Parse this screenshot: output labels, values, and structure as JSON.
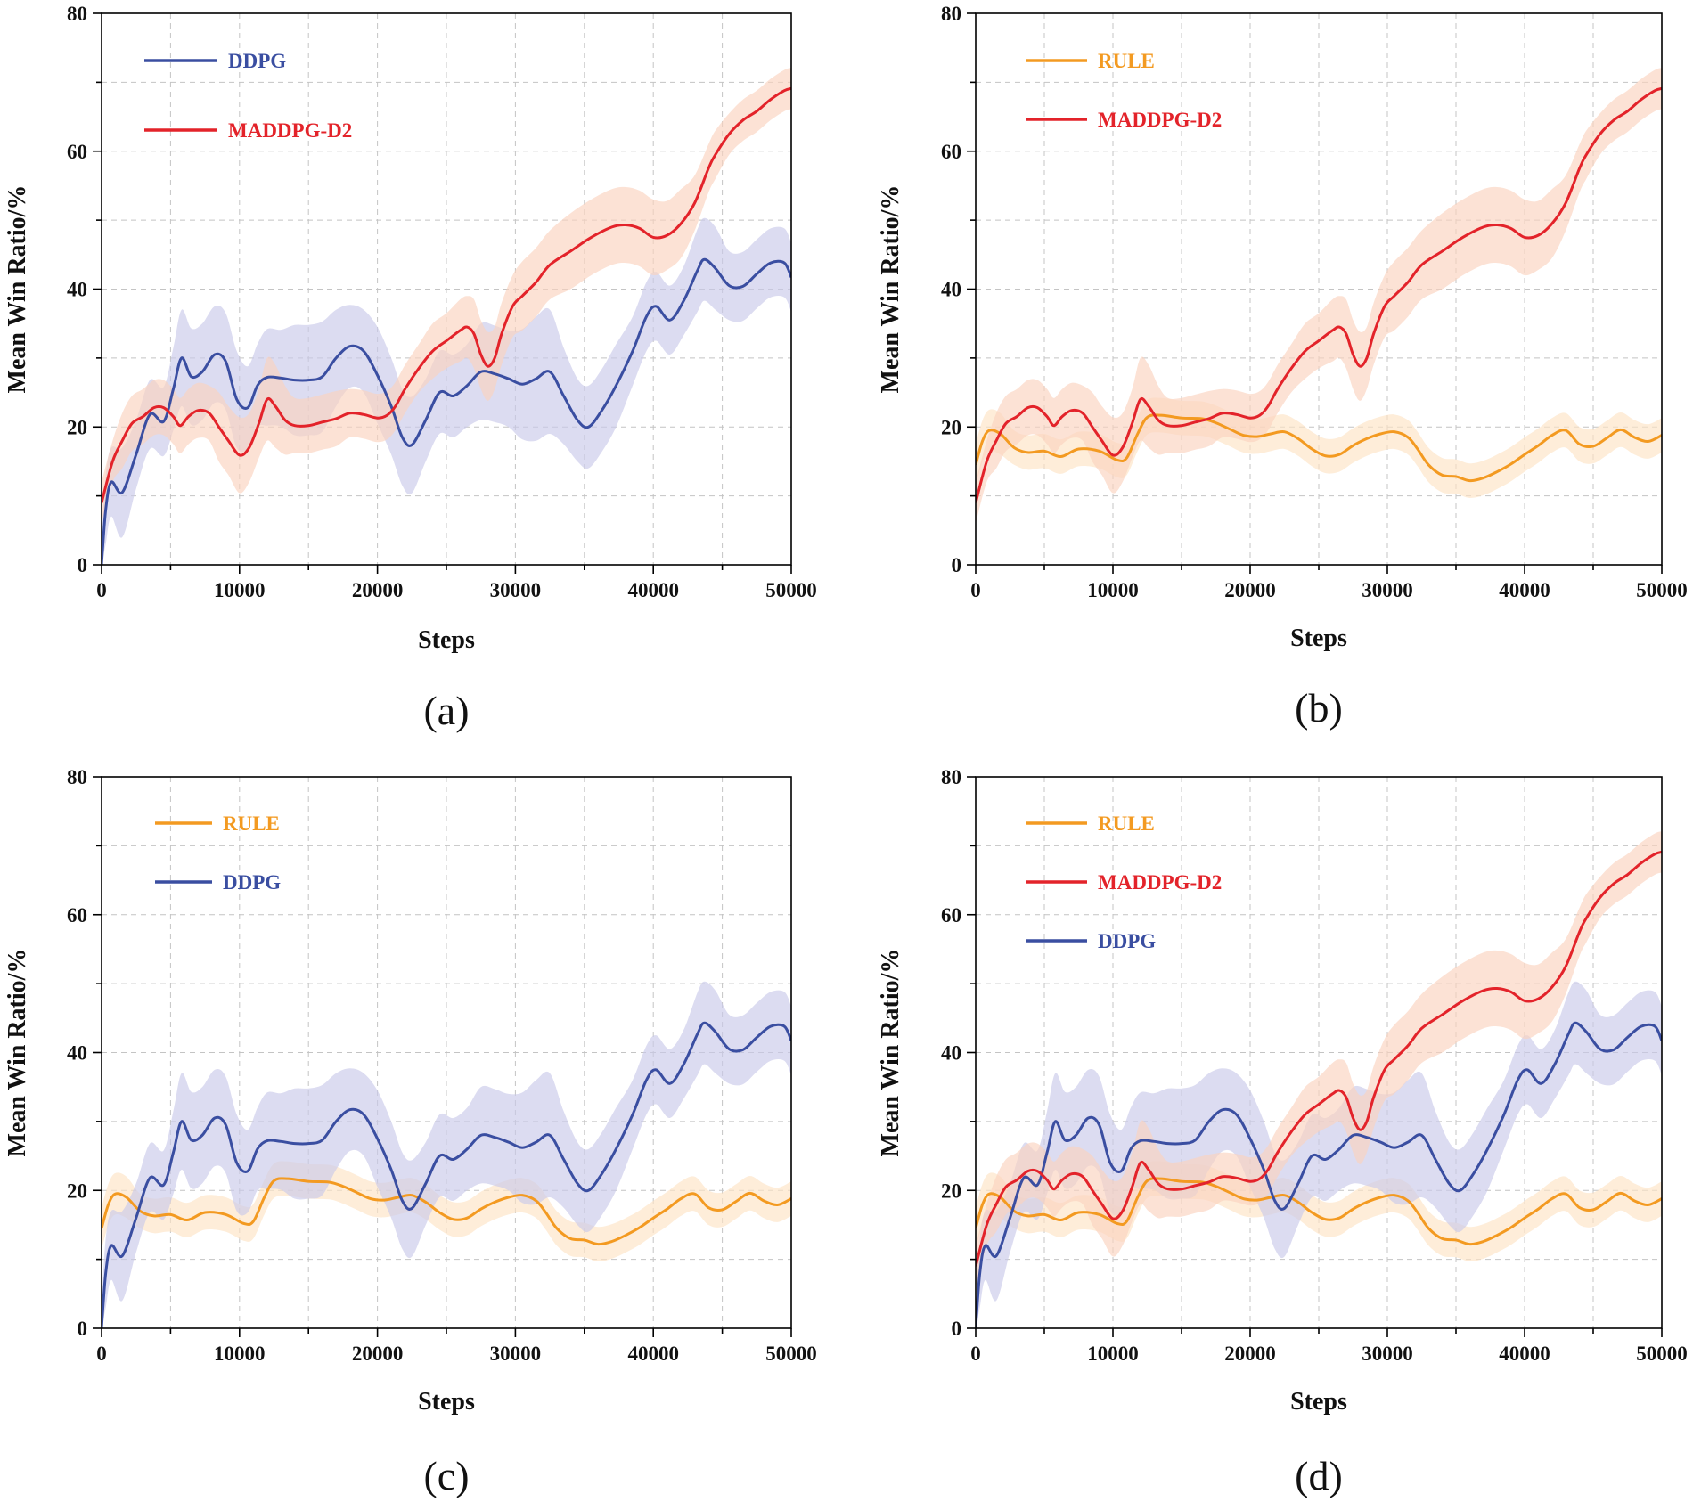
{
  "colors": {
    "DDPG": "#3a4ea1",
    "MADDPG-D2": "#e3232a",
    "RULE": "#f39a21"
  },
  "band_colors": {
    "DDPG": "#c9c9ea",
    "MADDPG-D2": "#fbd3be",
    "RULE": "#fde3c4"
  },
  "chart_data": [
    {
      "type": "line",
      "panel": "(a)",
      "xlabel": "Steps",
      "ylabel": "Mean Win Ratio/%",
      "xlim": [
        0,
        50000
      ],
      "ylim": [
        0,
        80
      ],
      "xticks": [
        0,
        10000,
        20000,
        30000,
        40000,
        50000
      ],
      "yticks": [
        0,
        20,
        40,
        60,
        80
      ],
      "grid": true,
      "legend": [
        "DDPG",
        "MADDPG-D2"
      ],
      "legend_position": "top-left",
      "series": [
        "DDPG",
        "MADDPG-D2"
      ]
    },
    {
      "type": "line",
      "panel": "(b)",
      "xlabel": "Steps",
      "ylabel": "Mean Win Ratio/%",
      "xlim": [
        0,
        50000
      ],
      "ylim": [
        0,
        80
      ],
      "xticks": [
        0,
        10000,
        20000,
        30000,
        40000,
        50000
      ],
      "yticks": [
        0,
        20,
        40,
        60,
        80
      ],
      "grid": true,
      "legend": [
        "RULE",
        "MADDPG-D2"
      ],
      "legend_position": "top-left",
      "series": [
        "RULE",
        "MADDPG-D2"
      ]
    },
    {
      "type": "line",
      "panel": "(c)",
      "xlabel": "Steps",
      "ylabel": "Mean Win Ratio/%",
      "xlim": [
        0,
        50000
      ],
      "ylim": [
        0,
        80
      ],
      "xticks": [
        0,
        10000,
        20000,
        30000,
        40000,
        50000
      ],
      "yticks": [
        0,
        20,
        40,
        60,
        80
      ],
      "grid": true,
      "legend": [
        "RULE",
        "DDPG"
      ],
      "legend_position": "top-left",
      "series": [
        "RULE",
        "DDPG"
      ]
    },
    {
      "type": "line",
      "panel": "(d)",
      "xlabel": "Steps",
      "ylabel": "Mean Win Ratio/%",
      "xlim": [
        0,
        50000
      ],
      "ylim": [
        0,
        80
      ],
      "xticks": [
        0,
        10000,
        20000,
        30000,
        40000,
        50000
      ],
      "yticks": [
        0,
        20,
        40,
        60,
        80
      ],
      "grid": true,
      "legend": [
        "RULE",
        "MADDPG-D2",
        "DDPG"
      ],
      "legend_position": "top-left",
      "series": [
        "RULE",
        "MADDPG-D2",
        "DDPG"
      ]
    }
  ],
  "series_data": {
    "DDPG": {
      "x": [
        0,
        300,
        700,
        1500,
        2500,
        3500,
        4500,
        5200,
        5800,
        6500,
        7300,
        8200,
        9000,
        9800,
        10600,
        11300,
        12000,
        13000,
        14000,
        15000,
        16000,
        17000,
        18000,
        19000,
        20000,
        21000,
        21800,
        22500,
        23500,
        24500,
        25500,
        26500,
        27500,
        28500,
        29500,
        30500,
        31500,
        32500,
        33500,
        34500,
        35300,
        36300,
        37300,
        38500,
        39500,
        40200,
        41200,
        42200,
        43200,
        43700,
        44500,
        45500,
        46500,
        47500,
        48500,
        49500,
        50000
      ],
      "y": [
        0,
        8,
        12,
        10.5,
        16,
        21.8,
        20.8,
        25.5,
        30,
        27.3,
        28,
        30.5,
        29.5,
        24,
        22.8,
        26,
        27.2,
        27.1,
        26.8,
        26.8,
        27.3,
        30,
        31.7,
        31,
        27.5,
        23,
        18.5,
        17.4,
        21,
        25,
        24.5,
        26,
        28,
        27.7,
        27,
        26.2,
        27,
        28,
        24.5,
        21,
        20,
        22.5,
        26,
        31,
        36,
        37.5,
        35.5,
        38.3,
        42.7,
        44.3,
        43,
        40.5,
        40.4,
        42.2,
        43.8,
        43.8,
        41.7
      ],
      "band": [
        4,
        5,
        5,
        6.5,
        5,
        5,
        5,
        6,
        7,
        7,
        7,
        7,
        7,
        7,
        6,
        6,
        7,
        7,
        8,
        8,
        8,
        7,
        6,
        6,
        7,
        7,
        7,
        7,
        6,
        6,
        6,
        6,
        7,
        7,
        7,
        8,
        9,
        9,
        7,
        6,
        6,
        6,
        6,
        5,
        5,
        5,
        5,
        5,
        6,
        6,
        6,
        5,
        5,
        5,
        5,
        5,
        5
      ]
    },
    "MADDPG-D2": {
      "x": [
        0,
        800,
        1500,
        2200,
        3000,
        3800,
        4500,
        5200,
        5700,
        6300,
        7000,
        7800,
        8500,
        9200,
        10000,
        10700,
        11400,
        12000,
        12600,
        13300,
        14000,
        15000,
        16000,
        17000,
        18000,
        19000,
        20000,
        20700,
        21300,
        22000,
        23000,
        24000,
        25000,
        26000,
        26500,
        27000,
        27500,
        28000,
        28500,
        29000,
        29800,
        30500,
        31500,
        32500,
        34000,
        35500,
        37000,
        38000,
        39000,
        40000,
        41000,
        42000,
        43000,
        44000,
        44500,
        45500,
        46500,
        47500,
        48500,
        49500,
        50000
      ],
      "y": [
        9,
        15,
        18,
        20.5,
        21.5,
        22.8,
        22.8,
        21.5,
        20.2,
        21.5,
        22.4,
        22,
        20,
        18,
        15.9,
        17,
        20.5,
        24,
        23,
        21,
        20.2,
        20.2,
        20.7,
        21.2,
        22,
        21.8,
        21.3,
        21.7,
        23,
        25.5,
        28.5,
        31,
        32.5,
        34,
        34.5,
        33.5,
        30.5,
        28.8,
        30,
        33.5,
        37.5,
        39,
        41,
        43.5,
        45.5,
        47.5,
        49,
        49.3,
        48.8,
        47.5,
        47.8,
        49.5,
        52.5,
        57.5,
        59.5,
        62.5,
        64.5,
        65.8,
        67.5,
        68.8,
        69.1
      ],
      "band": [
        3,
        3,
        4,
        4,
        4,
        4,
        4,
        4,
        4,
        4,
        4,
        4,
        5,
        5,
        5.5,
        5,
        5,
        6,
        6,
        5,
        4,
        4,
        4,
        4,
        3.5,
        3.5,
        3.5,
        3.5,
        3.5,
        3.5,
        3.5,
        4,
        4,
        4.5,
        4.5,
        5,
        5,
        5,
        4.5,
        4.5,
        4.5,
        5,
        5,
        5,
        5.5,
        5.5,
        5.5,
        5.5,
        5.5,
        5.5,
        5,
        5,
        4,
        3.5,
        3.5,
        3,
        3,
        3,
        3,
        3,
        3
      ]
    },
    "RULE": {
      "x": [
        0,
        500,
        1000,
        1800,
        2800,
        3800,
        5000,
        6200,
        7500,
        9000,
        10300,
        11000,
        11800,
        12500,
        13500,
        15000,
        16500,
        17500,
        18500,
        19500,
        20500,
        21500,
        22500,
        23500,
        24500,
        25500,
        26500,
        27500,
        28500,
        29500,
        30500,
        31500,
        32200,
        33000,
        34000,
        35000,
        36000,
        37000,
        38000,
        39000,
        40000,
        41000,
        42000,
        43000,
        44000,
        45000,
        46000,
        47000,
        48000,
        49000,
        50000
      ],
      "y": [
        14.5,
        18,
        19.5,
        19,
        17,
        16.3,
        16.5,
        15.7,
        16.8,
        16.5,
        15.2,
        15.5,
        19,
        21.4,
        21.7,
        21.3,
        21.2,
        20.6,
        19.7,
        18.8,
        18.6,
        19,
        19.3,
        18.3,
        16.8,
        15.8,
        16,
        17.3,
        18.3,
        19,
        19.3,
        18.5,
        16.8,
        14.5,
        13,
        12.8,
        12.2,
        12.6,
        13.5,
        14.6,
        16,
        17.3,
        18.8,
        19.5,
        17.5,
        17.2,
        18.4,
        19.6,
        18.5,
        17.9,
        18.8
      ],
      "band": [
        3,
        3,
        3,
        3,
        2.5,
        2.5,
        2.5,
        2.5,
        2.5,
        2.5,
        2.5,
        2.5,
        2.5,
        2.5,
        2.5,
        2.5,
        2.5,
        2.5,
        2.5,
        2.5,
        2.5,
        2.5,
        2.5,
        2.5,
        2.5,
        2.5,
        2.5,
        2.5,
        2.5,
        2.5,
        2.5,
        2.5,
        2.5,
        2.5,
        2.5,
        2.5,
        2.5,
        2.5,
        2.5,
        2.5,
        2.5,
        2.5,
        2.5,
        2.5,
        2.5,
        2.5,
        2.5,
        2.5,
        2.5,
        2.5,
        2.5
      ]
    }
  }
}
